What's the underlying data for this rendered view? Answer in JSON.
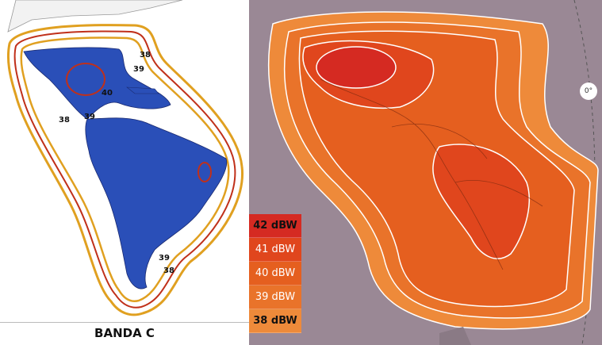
{
  "left_map": {
    "caption": "BANDA C",
    "contour_labels": [
      "38",
      "39",
      "40",
      "38",
      "39",
      "39",
      "38"
    ]
  },
  "right_map": {
    "orbit_label": "0°",
    "legend": [
      "42 dBW",
      "41 dBW",
      "40 dBW",
      "39 dBW",
      "38 dBW"
    ]
  },
  "colors": {
    "land_coverage": "#2a4fb8",
    "contour_outer": "#e0a020",
    "contour_inner": "#c0301a",
    "right_background": "#9a8895"
  }
}
